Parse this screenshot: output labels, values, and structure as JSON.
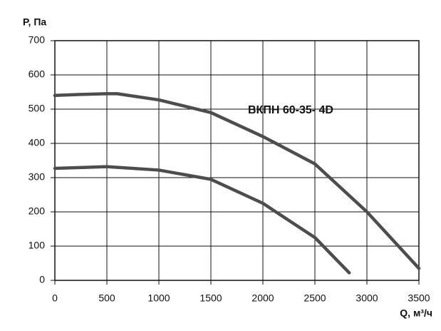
{
  "chart_data": {
    "type": "line",
    "x_label": "Q, м³/ч",
    "y_label": "P, Па",
    "annotation": "ВКПН 60-35- 4D",
    "xlim": [
      0,
      3500
    ],
    "xticks": [
      0,
      500,
      1000,
      1500,
      2000,
      2500,
      3000,
      3500
    ],
    "ylim": [
      0,
      700
    ],
    "yticks": [
      0,
      100,
      200,
      300,
      400,
      500,
      600,
      700
    ],
    "grid": true,
    "series": [
      {
        "color": "#4d4d4d",
        "x": [
          0,
          250,
          500,
          600,
          1000,
          1500,
          2000,
          2500,
          3000,
          3500
        ],
        "values": [
          540,
          543,
          545,
          545,
          527,
          490,
          420,
          340,
          200,
          35
        ]
      },
      {
        "color": "#4d4d4d",
        "x": [
          0,
          500,
          1000,
          1500,
          2000,
          2500,
          2830
        ],
        "values": [
          327,
          332,
          322,
          295,
          225,
          125,
          22
        ]
      }
    ]
  }
}
